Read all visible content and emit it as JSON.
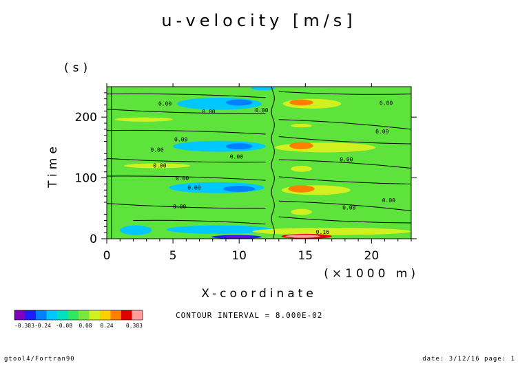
{
  "footer": {
    "left": "gtool4/Fortran90",
    "right": "date: 3/12/16 page: 1"
  },
  "contour_interval": "CONTOUR INTERVAL = 8.000E-02",
  "colorbar": {
    "colors": [
      "#7f00bf",
      "#1c1cff",
      "#0080ff",
      "#00c8ff",
      "#00e0c0",
      "#30e860",
      "#78e840",
      "#d0f020",
      "#ffd000",
      "#ff8000",
      "#e00000",
      "#ff9c9c"
    ],
    "tick_labels": [
      "-0.383",
      "-0.24",
      "-0.08",
      "0.08",
      "0.24",
      "0.383"
    ]
  },
  "chart_data": {
    "type": "heatmap",
    "title": "u-velocity [m/s]",
    "xlabel": "X-coordinate",
    "x_unit_label": "(×1000 m)",
    "ylabel": "Time",
    "y_unit_label": "(s)",
    "xlim": [
      0,
      23
    ],
    "ylim": [
      0,
      250
    ],
    "x_ticks": [
      0,
      5,
      10,
      15,
      20
    ],
    "y_ticks": [
      0,
      100,
      200
    ],
    "background_color": "#5ee23c",
    "contour_labels": [
      "0.00",
      "0.00",
      "0.00",
      "0.00",
      "0.00",
      "0.00",
      "0.00",
      "0.00",
      "0.00",
      "0.00",
      "0.00",
      "0.00",
      "0.00",
      "0.00",
      "0.00",
      "0.16"
    ],
    "features": [
      {
        "name": "min-10-0",
        "x": 9.8,
        "t": 3,
        "rx": 1.9,
        "rt": 3,
        "value": -0.3,
        "color": "#1c1cff"
      },
      {
        "name": "min-10-0-core",
        "x": 9.9,
        "t": 3,
        "rx": 1.0,
        "rt": 2,
        "value": -0.35,
        "color": "#7f00bf"
      },
      {
        "name": "max-15-0",
        "x": 15.1,
        "t": 4,
        "rx": 1.9,
        "rt": 4,
        "value": 0.35,
        "color": "#e00000"
      },
      {
        "name": "max-15-0-inner",
        "x": 14.8,
        "t": 4,
        "rx": 1.3,
        "rt": 2.5,
        "value": 0.38,
        "color": "#ff9c9c"
      },
      {
        "name": "neg-10-80",
        "x": 10.0,
        "t": 82,
        "rx": 1.2,
        "rt": 5,
        "value": -0.12,
        "color": "#0080ff"
      },
      {
        "name": "neg-10-150",
        "x": 10.0,
        "t": 152,
        "rx": 1.0,
        "rt": 5,
        "value": -0.12,
        "color": "#0080ff"
      },
      {
        "name": "neg-10-224",
        "x": 10.0,
        "t": 224,
        "rx": 1.0,
        "rt": 5,
        "value": -0.12,
        "color": "#0080ff"
      },
      {
        "name": "pos-14.7-82",
        "x": 14.7,
        "t": 82,
        "rx": 1.0,
        "rt": 6,
        "value": 0.2,
        "color": "#ff8000"
      },
      {
        "name": "pos-14.7-153",
        "x": 14.7,
        "t": 153,
        "rx": 0.9,
        "rt": 6,
        "value": 0.2,
        "color": "#ff8000"
      },
      {
        "name": "pos-14.7-224",
        "x": 14.7,
        "t": 224,
        "rx": 0.9,
        "rt": 5,
        "value": 0.2,
        "color": "#ff8000"
      }
    ]
  }
}
